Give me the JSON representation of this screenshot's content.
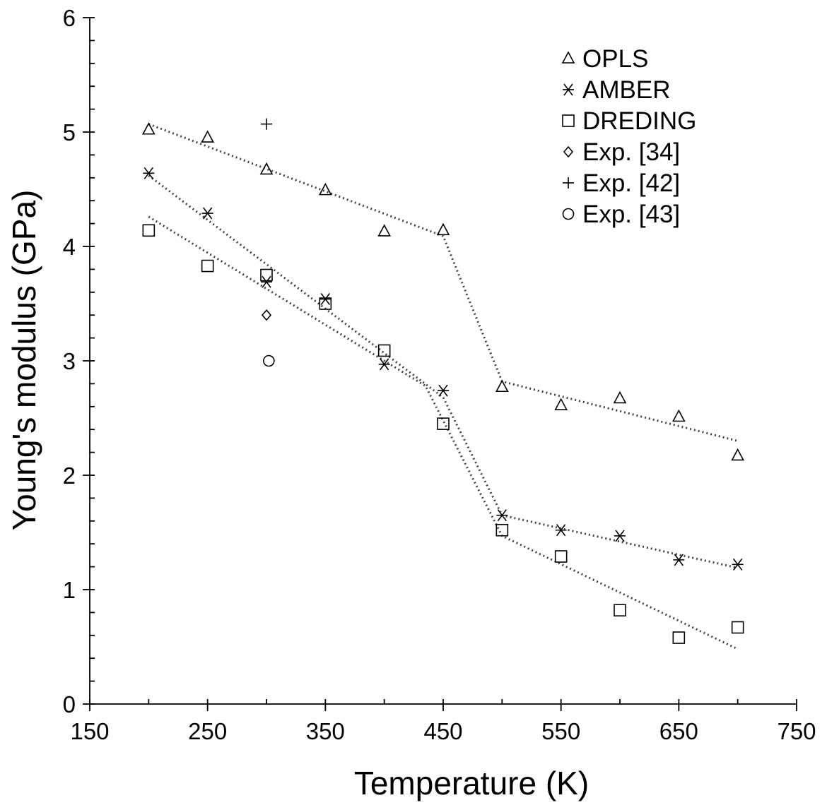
{
  "chart_data": {
    "type": "scatter",
    "title": "",
    "xlabel": "Temperature  (K)",
    "ylabel": "Young's modulus (GPa)",
    "xlim": [
      150,
      750
    ],
    "ylim": [
      0,
      6
    ],
    "xticks": [
      150,
      250,
      350,
      450,
      550,
      650,
      750
    ],
    "yticks": [
      0,
      1,
      2,
      3,
      4,
      5,
      6
    ],
    "x_minor_step": 50,
    "y_minor_step": 0.2,
    "grid": false,
    "legend_position": "top-right",
    "series": [
      {
        "name": "OPLS",
        "marker": "triangle",
        "x": [
          200,
          250,
          300,
          350,
          400,
          450,
          500,
          550,
          600,
          650,
          700
        ],
        "y": [
          5.02,
          4.95,
          4.67,
          4.49,
          4.13,
          4.14,
          2.77,
          2.61,
          2.67,
          2.51,
          2.17
        ]
      },
      {
        "name": "AMBER",
        "marker": "asterisk",
        "x": [
          200,
          250,
          300,
          350,
          400,
          450,
          500,
          550,
          600,
          650,
          700
        ],
        "y": [
          4.64,
          4.29,
          3.69,
          3.54,
          2.97,
          2.74,
          1.65,
          1.52,
          1.47,
          1.26,
          1.22
        ]
      },
      {
        "name": "DREDING",
        "marker": "square",
        "x": [
          200,
          250,
          300,
          350,
          400,
          450,
          500,
          550,
          600,
          650,
          700
        ],
        "y": [
          4.14,
          3.83,
          3.75,
          3.5,
          3.09,
          2.45,
          1.52,
          1.29,
          0.82,
          0.58,
          0.67
        ]
      },
      {
        "name": "Exp. [34]",
        "marker": "diamond",
        "x": [
          300
        ],
        "y": [
          3.4
        ]
      },
      {
        "name": "Exp. [42]",
        "marker": "plus",
        "x": [
          300
        ],
        "y": [
          5.07
        ]
      },
      {
        "name": "Exp. [43]",
        "marker": "circle",
        "x": [
          302
        ],
        "y": [
          3.0
        ]
      }
    ],
    "fit_lines": [
      {
        "series": "OPLS",
        "x": [
          200,
          450,
          500,
          700
        ],
        "y": [
          5.07,
          4.09,
          2.82,
          2.3
        ]
      },
      {
        "series": "AMBER",
        "x": [
          200,
          450,
          500,
          700
        ],
        "y": [
          4.62,
          2.68,
          1.65,
          1.19
        ]
      },
      {
        "series": "DREDING",
        "x": [
          200,
          435,
          500,
          700
        ],
        "y": [
          4.26,
          2.78,
          1.47,
          0.48
        ]
      }
    ]
  }
}
